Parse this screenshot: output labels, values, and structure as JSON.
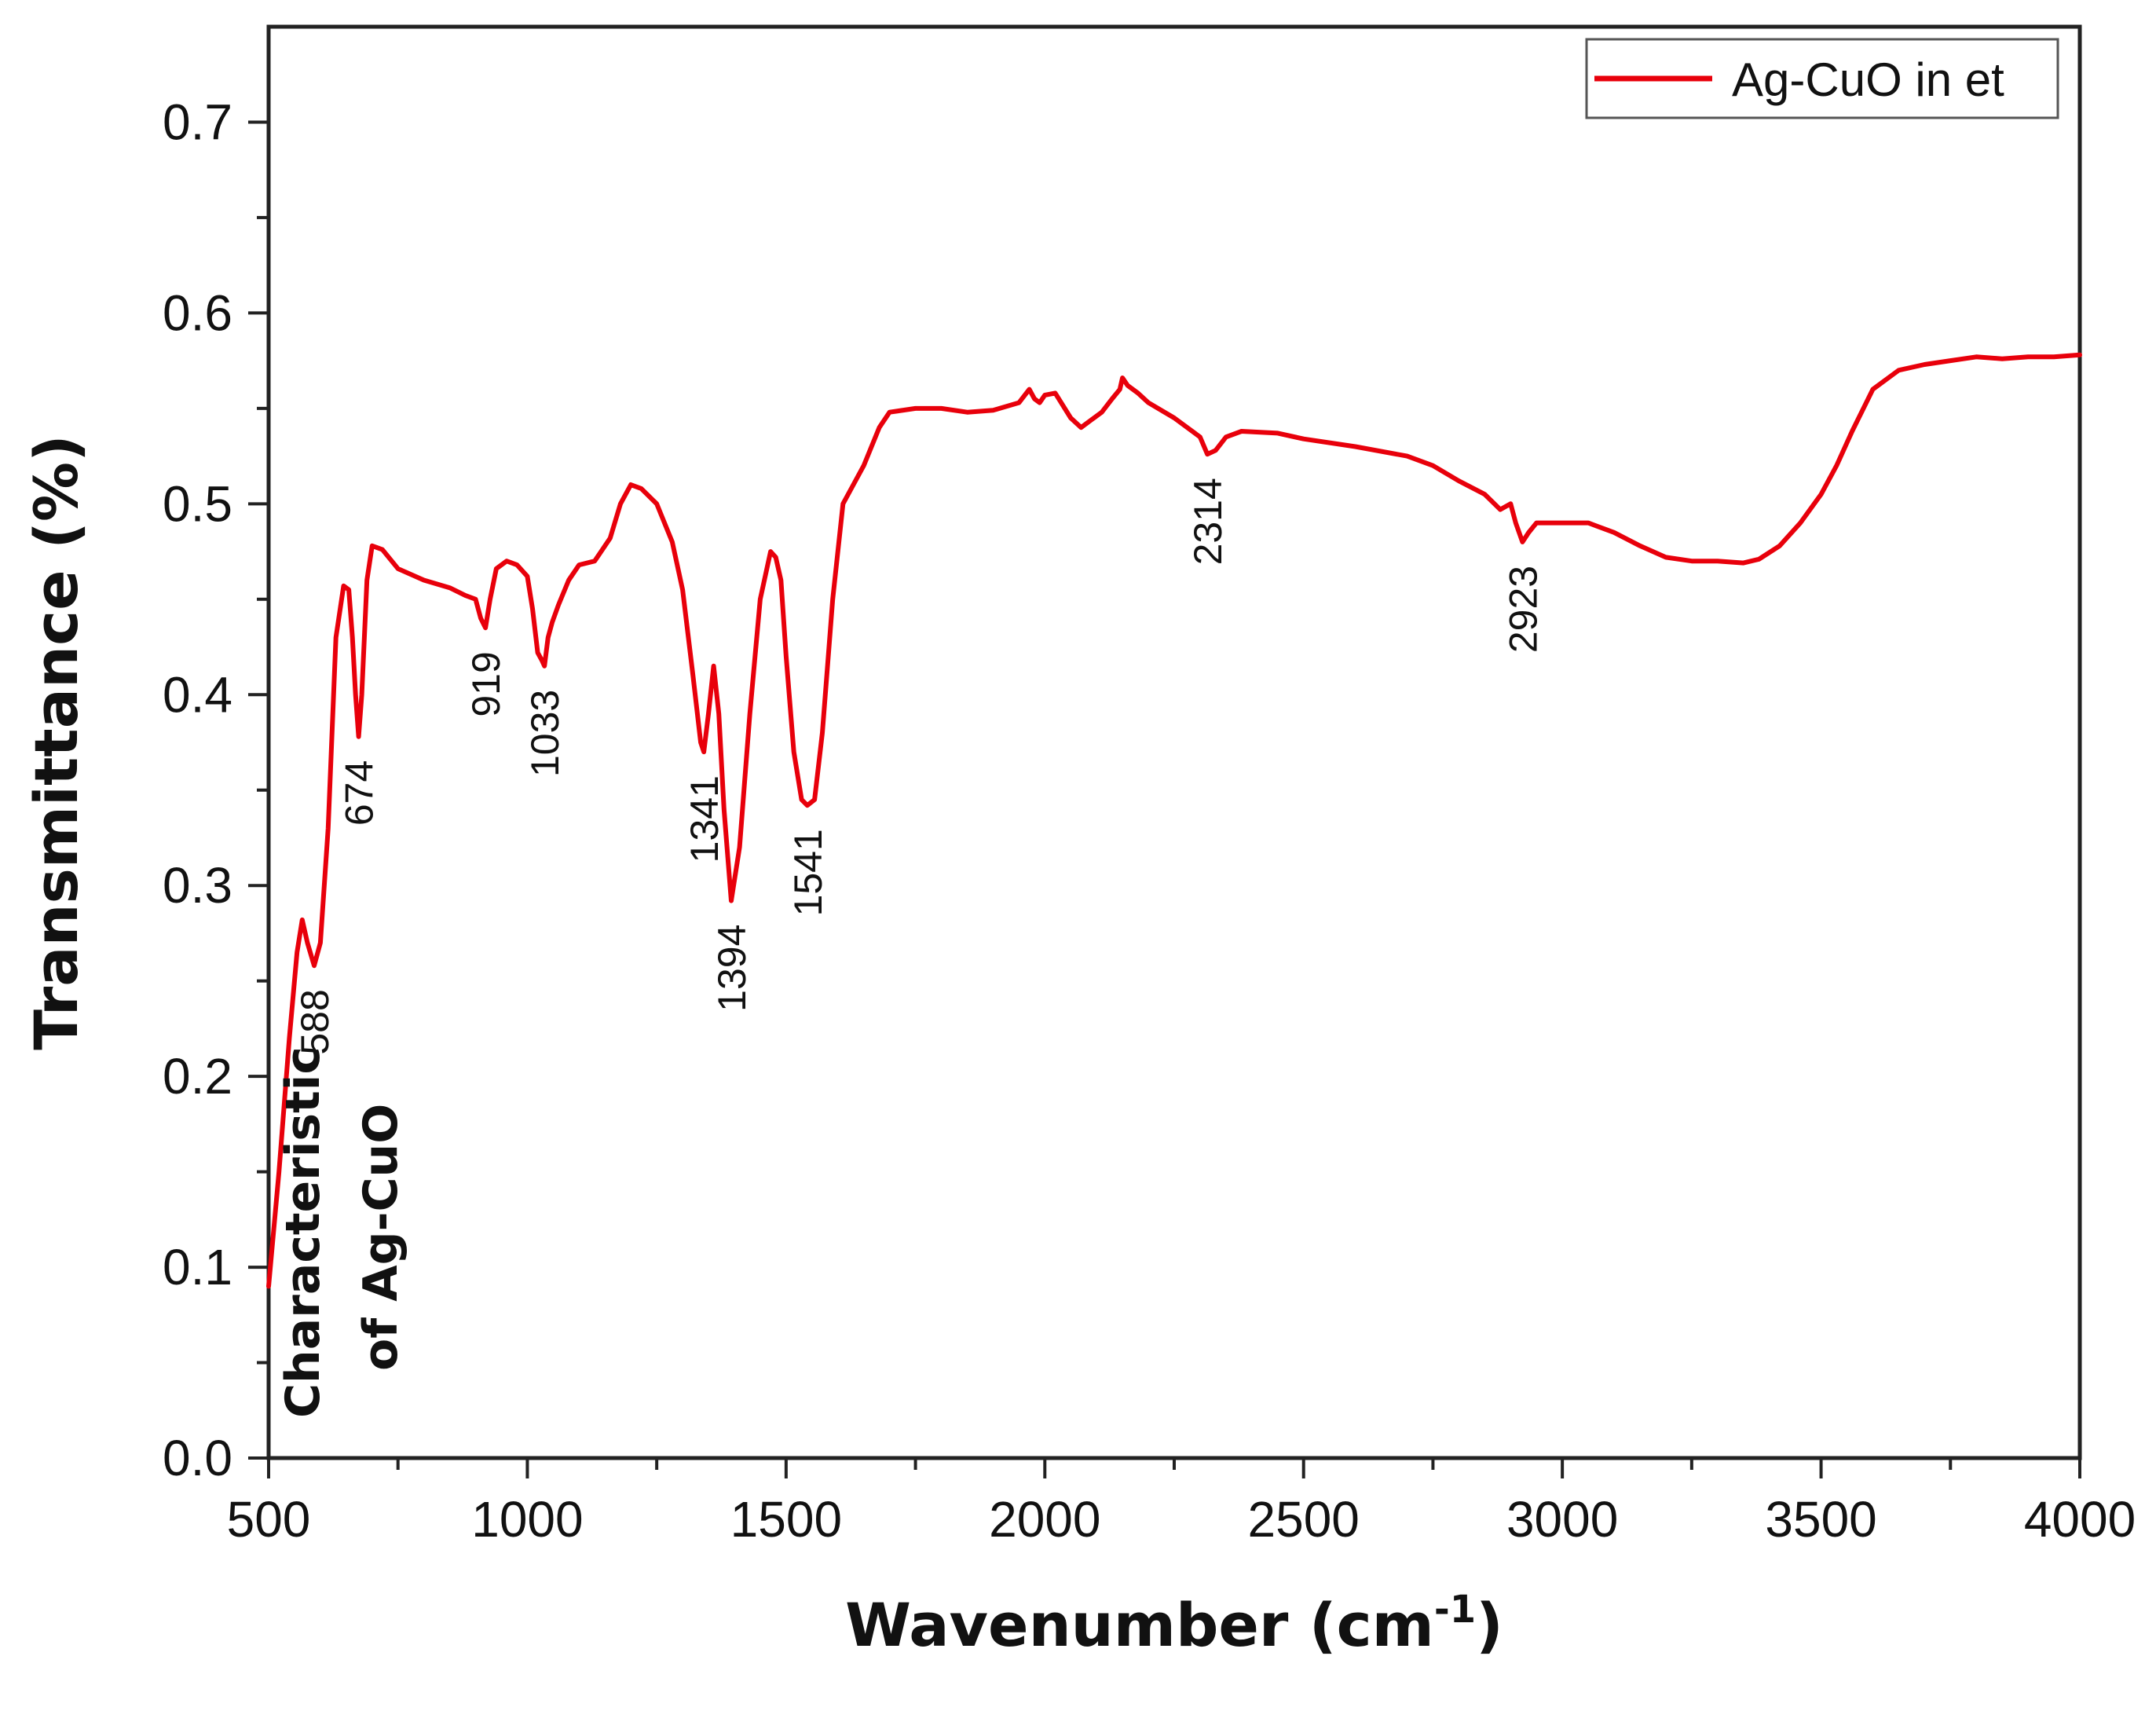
{
  "chart_data": {
    "type": "line",
    "title": "",
    "xlabel": "Wavenumber (cm",
    "xlabel_superscript": "-1",
    "xlabel_suffix": ")",
    "ylabel": "Transmittance (%)",
    "xlim": [
      500,
      4000
    ],
    "ylim": [
      0.0,
      0.75
    ],
    "x_ticks": [
      500,
      1000,
      1500,
      2000,
      2500,
      3000,
      3500,
      4000
    ],
    "x_tick_labels": [
      "500",
      "1000",
      "1500",
      "2000",
      "2500",
      "3000",
      "3500",
      "4000"
    ],
    "y_ticks": [
      0.0,
      0.1,
      0.2,
      0.3,
      0.4,
      0.5,
      0.6,
      0.7
    ],
    "y_tick_labels": [
      "0.0",
      "0.1",
      "0.2",
      "0.3",
      "0.4",
      "0.5",
      "0.6",
      "0.7"
    ],
    "grid": false,
    "legend_position": "top-right",
    "series": [
      {
        "name": "Ag-CuO in et",
        "color": "#e8000b",
        "x": [
          500,
          520,
          540,
          555,
          565,
          575,
          588,
          600,
          615,
          630,
          645,
          655,
          662,
          668,
          674,
          680,
          690,
          700,
          720,
          750,
          800,
          850,
          880,
          900,
          910,
          919,
          928,
          940,
          960,
          980,
          1000,
          1010,
          1020,
          1028,
          1033,
          1040,
          1048,
          1060,
          1080,
          1100,
          1130,
          1160,
          1180,
          1200,
          1220,
          1250,
          1280,
          1300,
          1320,
          1335,
          1341,
          1350,
          1360,
          1370,
          1380,
          1394,
          1410,
          1430,
          1450,
          1470,
          1480,
          1490,
          1500,
          1515,
          1530,
          1541,
          1555,
          1570,
          1590,
          1610,
          1630,
          1650,
          1680,
          1700,
          1750,
          1800,
          1850,
          1900,
          1950,
          1970,
          1980,
          1990,
          2000,
          2020,
          2050,
          2070,
          2090,
          2110,
          2130,
          2145,
          2150,
          2160,
          2180,
          2200,
          2250,
          2300,
          2314,
          2330,
          2350,
          2380,
          2450,
          2500,
          2600,
          2700,
          2750,
          2800,
          2850,
          2880,
          2900,
          2910,
          2923,
          2935,
          2950,
          3000,
          3050,
          3100,
          3150,
          3200,
          3250,
          3300,
          3350,
          3380,
          3420,
          3460,
          3500,
          3530,
          3560,
          3600,
          3650,
          3700,
          3750,
          3800,
          3850,
          3900,
          3950,
          4000
        ],
        "y": [
          0.09,
          0.15,
          0.22,
          0.265,
          0.282,
          0.27,
          0.258,
          0.27,
          0.33,
          0.43,
          0.457,
          0.455,
          0.43,
          0.4,
          0.378,
          0.4,
          0.46,
          0.478,
          0.476,
          0.466,
          0.46,
          0.456,
          0.452,
          0.45,
          0.44,
          0.435,
          0.45,
          0.466,
          0.47,
          0.468,
          0.462,
          0.445,
          0.422,
          0.418,
          0.415,
          0.43,
          0.438,
          0.447,
          0.46,
          0.468,
          0.47,
          0.482,
          0.5,
          0.51,
          0.508,
          0.5,
          0.48,
          0.455,
          0.41,
          0.375,
          0.37,
          0.39,
          0.415,
          0.39,
          0.34,
          0.292,
          0.32,
          0.39,
          0.45,
          0.475,
          0.472,
          0.46,
          0.42,
          0.37,
          0.345,
          0.342,
          0.345,
          0.38,
          0.45,
          0.5,
          0.51,
          0.52,
          0.54,
          0.548,
          0.55,
          0.55,
          0.548,
          0.549,
          0.553,
          0.56,
          0.555,
          0.553,
          0.557,
          0.558,
          0.545,
          0.54,
          0.544,
          0.548,
          0.555,
          0.56,
          0.566,
          0.562,
          0.558,
          0.553,
          0.545,
          0.535,
          0.526,
          0.528,
          0.535,
          0.538,
          0.537,
          0.534,
          0.53,
          0.525,
          0.52,
          0.512,
          0.505,
          0.497,
          0.5,
          0.49,
          0.48,
          0.485,
          0.49,
          0.49,
          0.49,
          0.485,
          0.478,
          0.472,
          0.47,
          0.47,
          0.469,
          0.471,
          0.478,
          0.49,
          0.505,
          0.52,
          0.538,
          0.56,
          0.57,
          0.573,
          0.575,
          0.577,
          0.576,
          0.577,
          0.577,
          0.578
        ]
      }
    ],
    "peak_labels": [
      {
        "text": "588",
        "x": 588
      },
      {
        "text": "674",
        "x": 674
      },
      {
        "text": "919",
        "x": 919
      },
      {
        "text": "1033",
        "x": 1033
      },
      {
        "text": "1341",
        "x": 1341
      },
      {
        "text": "1394",
        "x": 1394
      },
      {
        "text": "1541",
        "x": 1541
      },
      {
        "text": "2314",
        "x": 2314
      },
      {
        "text": "2923",
        "x": 2923
      }
    ],
    "annotation_lines": [
      "Characteristic",
      "of Ag-CuO"
    ]
  }
}
